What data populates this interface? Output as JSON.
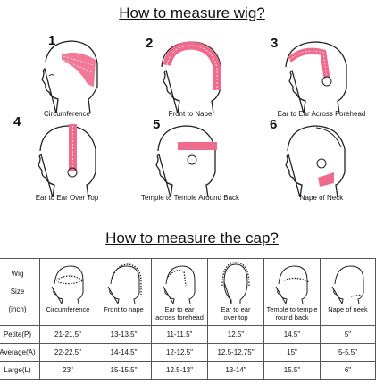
{
  "title_top": "How to measure wig?",
  "title_cap": "How to measure the cap?",
  "steps": [
    {
      "num": "1",
      "caption": "Circumference"
    },
    {
      "num": "2",
      "caption": "Front to Nape"
    },
    {
      "num": "3",
      "caption": "Ear to Ear Across Forehead"
    },
    {
      "num": "4",
      "caption": "Ear to Ear Over Top"
    },
    {
      "num": "5",
      "caption": "Temple to Temple Around Back"
    },
    {
      "num": "6",
      "caption": "Nape of Neck"
    }
  ],
  "table": {
    "wig_size_lines": [
      "Wig",
      "Size",
      "(inch)"
    ],
    "headers": [
      [
        "Circumference"
      ],
      [
        "Front to nape"
      ],
      [
        "Ear to ear",
        "across forehead"
      ],
      [
        "Ear to ear",
        "over top"
      ],
      [
        "Temple to temple",
        "round back"
      ],
      [
        "Nape of neek"
      ]
    ],
    "rows": [
      {
        "label": "Petite(P)",
        "values": [
          "21-21.5\"",
          "13-13.5\"",
          "11-11.5\"",
          "12.5\"",
          "14.5\"",
          "5\""
        ]
      },
      {
        "label": "Average(A)",
        "values": [
          "22-22.5\"",
          "14-14.5\"",
          "12-12.5\"",
          "12.5-12.75\"",
          "15\"",
          "5-5.5\""
        ]
      },
      {
        "label": "Large(L)",
        "values": [
          "23\"",
          "15-15.5\"",
          "12.5-13\"",
          "13-14\"",
          "15.5\"",
          "6\""
        ]
      }
    ]
  },
  "colors": {
    "tape": "#f06a8c",
    "line": "#222222"
  }
}
